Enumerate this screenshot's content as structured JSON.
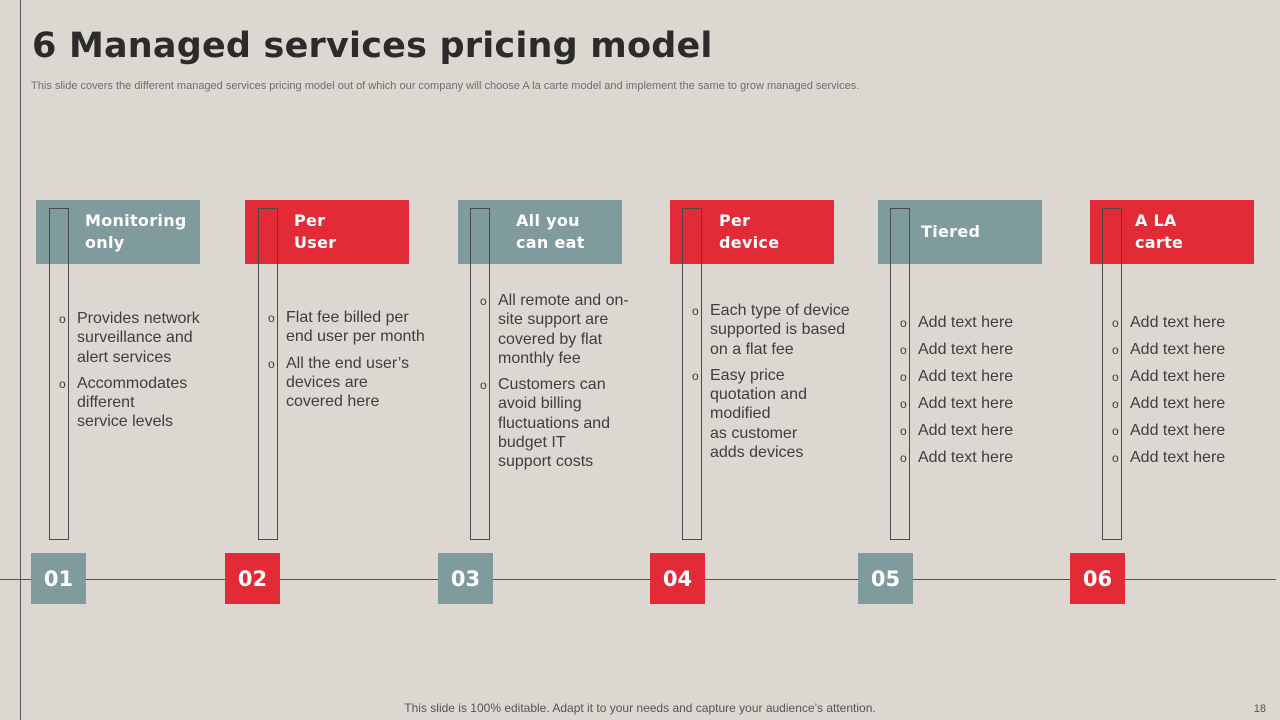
{
  "slide": {
    "title": "6 Managed services pricing model",
    "subtitle": "This slide covers the different managed services pricing model out of which our company will choose A la carte model and implement the same to grow managed services.",
    "footer": "This slide is 100% editable. Adapt it to your needs and capture your audience’s attention.",
    "page_number": "18"
  },
  "models": [
    {
      "number": "01",
      "title": "Monitoring\nonly",
      "color": "teal",
      "bullets": [
        "Provides network\nsurveillance  and\n alert services",
        "Accommodates\ndifferent\nservice levels"
      ]
    },
    {
      "number": "02",
      "title": "Per\nUser",
      "color": "red",
      "bullets": [
        "Flat fee billed per\nend user per month",
        "All the end user’s\ndevices are\ncovered here"
      ]
    },
    {
      "number": "03",
      "title": "All you\ncan eat",
      "color": "teal",
      "bullets": [
        "All remote and on-\nsite support are\ncovered by flat\nmonthly  fee",
        "Customers can\navoid billing\nfluctuations  and\nbudget IT\nsupport costs"
      ]
    },
    {
      "number": "04",
      "title": "Per\ndevice",
      "color": "red",
      "bullets": [
        "Each type of device\nsupported is based\non a flat fee",
        "Easy price\nquotation and\nmodified\nas customer\nadds devices"
      ]
    },
    {
      "number": "05",
      "title": "Tiered",
      "color": "teal",
      "bullets": [
        "Add text here",
        "Add text here",
        "Add text here",
        "Add text here",
        "Add text here",
        "Add text here"
      ]
    },
    {
      "number": "06",
      "title": "A LA\ncarte",
      "color": "red",
      "bullets": [
        "Add text here",
        "Add text here",
        "Add text here",
        "Add text here",
        "Add text here",
        "Add text here"
      ]
    }
  ],
  "icons": {
    "bullet": "circle-bullet-icon"
  },
  "colors": {
    "teal": "#7f9b9d",
    "red": "#e32a37",
    "background": "#dcd7d0"
  }
}
